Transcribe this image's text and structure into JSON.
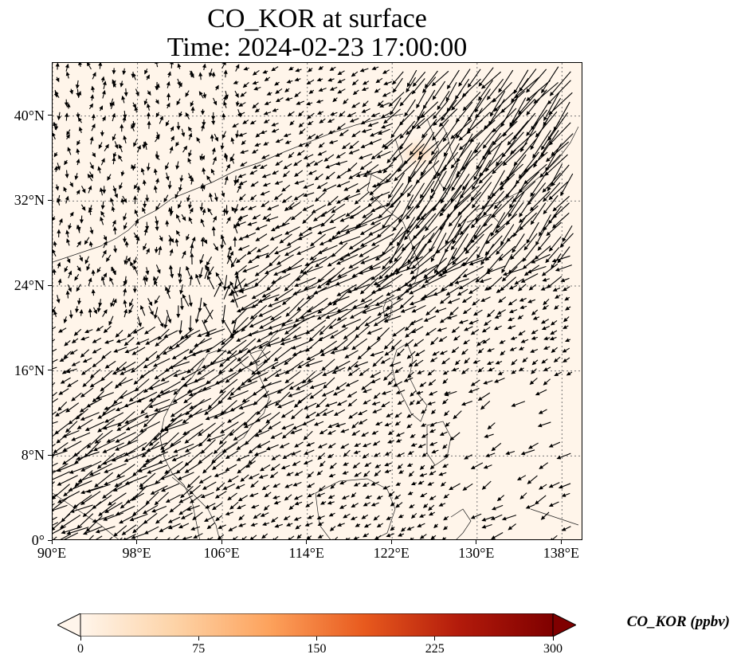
{
  "title_line1": "CO_KOR at surface",
  "title_line2": "Time: 2024-02-23 17:00:00",
  "map": {
    "extent": {
      "lon_min": 90,
      "lon_max": 140,
      "lat_min": 0,
      "lat_max": 45
    },
    "lat_ticks": [
      0,
      8,
      16,
      24,
      32,
      40
    ],
    "lon_ticks": [
      90,
      98,
      106,
      114,
      122,
      130,
      138
    ],
    "lat_labels": [
      "0°",
      "8°N",
      "16°N",
      "24°N",
      "32°N",
      "40°N"
    ],
    "lon_labels": [
      "90°E",
      "98°E",
      "106°E",
      "114°E",
      "122°E",
      "130°E",
      "138°E"
    ],
    "gridlines": "dotted",
    "background_color": "#fff5ea",
    "hotspot": {
      "lon": 124.5,
      "lat": 36.5,
      "value_ppbv": 40,
      "color": "#fde0c5"
    },
    "wind_vectors": "black quiver arrows"
  },
  "colorbar": {
    "label": "CO_KOR (ppbv)",
    "min": 0,
    "max": 300,
    "ticks": [
      0,
      75,
      150,
      225,
      300
    ],
    "tick_labels": [
      "0",
      "75",
      "150",
      "225",
      "300"
    ],
    "colormap": [
      "#fff5eb",
      "#fdd3a7",
      "#fda25c",
      "#e85a1e",
      "#b31b0b",
      "#7f0000"
    ],
    "extend": "both"
  }
}
